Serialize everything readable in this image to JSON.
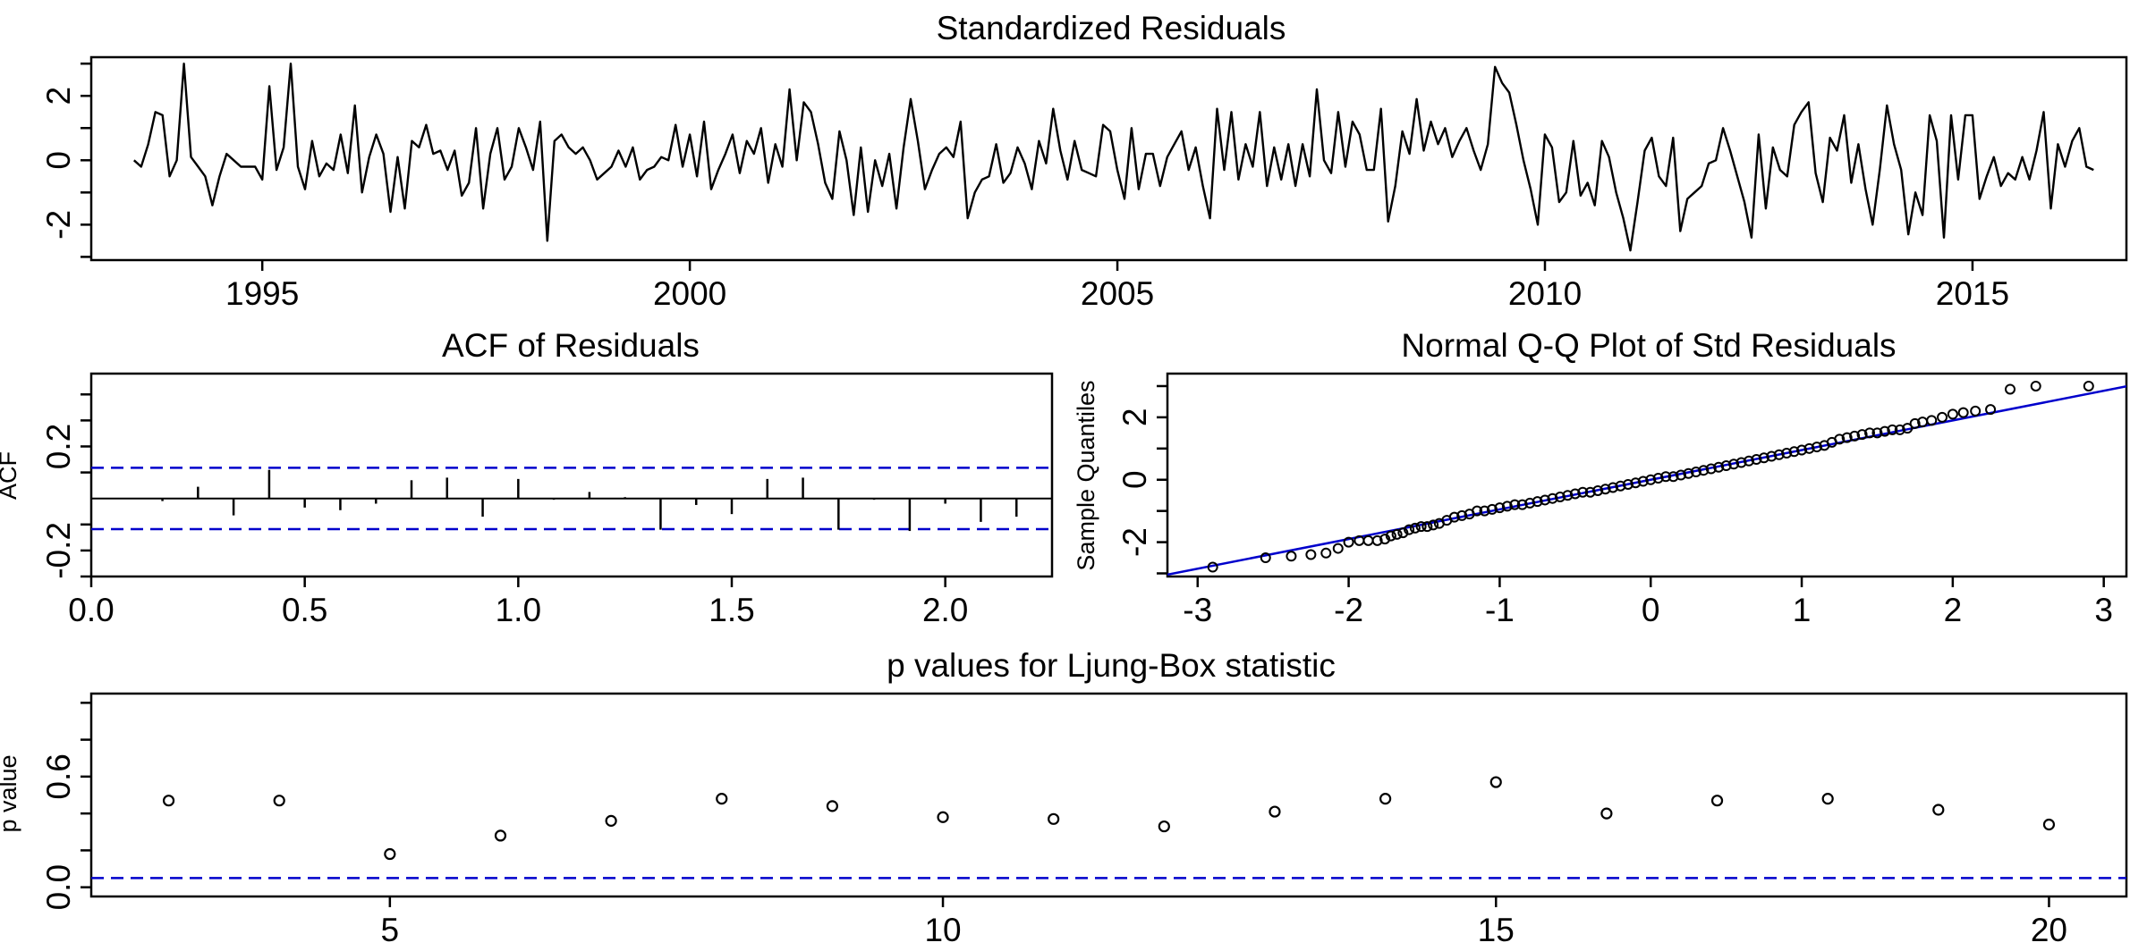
{
  "figure": {
    "colors": {
      "ink": "#000000",
      "reference": "#0000cc"
    }
  },
  "chart_data": [
    {
      "id": "resid",
      "type": "line",
      "title": "Standardized Residuals",
      "xlabel": "",
      "ylabel": "",
      "xlim": [
        1993.0,
        2016.8
      ],
      "ylim": [
        -3.1,
        3.2
      ],
      "x_ticks": [
        1995,
        2000,
        2005,
        2010,
        2015
      ],
      "x_tick_labels": [
        "1995",
        "2000",
        "2005",
        "2010",
        "2015"
      ],
      "y_ticks": [
        -2,
        0,
        2
      ],
      "y_tick_labels": [
        "-2",
        "0",
        "2"
      ],
      "y_minor_ticks": [
        -3,
        -1,
        1,
        3
      ],
      "x_start": 1993.5,
      "x_step": 0.08333,
      "values": [
        0.0,
        -0.2,
        0.5,
        1.5,
        1.4,
        -0.5,
        0.0,
        3.0,
        0.1,
        -0.2,
        -0.5,
        -1.4,
        -0.5,
        0.2,
        0.0,
        -0.2,
        -0.2,
        -0.2,
        -0.6,
        2.3,
        -0.3,
        0.4,
        3.0,
        -0.2,
        -0.9,
        0.6,
        -0.5,
        -0.1,
        -0.3,
        0.8,
        -0.4,
        1.7,
        -1.0,
        0.1,
        0.8,
        0.2,
        -1.6,
        0.1,
        -1.5,
        0.6,
        0.4,
        1.1,
        0.2,
        0.3,
        -0.3,
        0.3,
        -1.1,
        -0.7,
        1.0,
        -1.5,
        0.2,
        1.0,
        -0.6,
        -0.2,
        1.0,
        0.4,
        -0.3,
        1.2,
        -2.5,
        0.6,
        0.8,
        0.4,
        0.2,
        0.4,
        0.0,
        -0.6,
        -0.4,
        -0.2,
        0.3,
        -0.2,
        0.4,
        -0.6,
        -0.3,
        -0.2,
        0.1,
        0.0,
        1.1,
        -0.2,
        0.8,
        -0.5,
        1.2,
        -0.9,
        -0.3,
        0.2,
        0.8,
        -0.4,
        0.6,
        0.2,
        1.0,
        -0.7,
        0.5,
        -0.2,
        2.2,
        0.0,
        1.8,
        1.5,
        0.5,
        -0.7,
        -1.2,
        0.9,
        0.0,
        -1.7,
        0.4,
        -1.6,
        0.0,
        -0.8,
        0.2,
        -1.5,
        0.4,
        1.9,
        0.6,
        -0.9,
        -0.3,
        0.2,
        0.4,
        0.1,
        1.2,
        -1.8,
        -1.0,
        -0.6,
        -0.5,
        0.5,
        -0.7,
        -0.4,
        0.4,
        -0.1,
        -0.9,
        0.6,
        -0.1,
        1.6,
        0.3,
        -0.6,
        0.6,
        -0.3,
        -0.4,
        -0.5,
        1.1,
        0.9,
        -0.3,
        -1.2,
        1.0,
        -0.9,
        0.2,
        0.2,
        -0.8,
        0.1,
        0.5,
        0.9,
        -0.3,
        0.4,
        -0.8,
        -1.8,
        1.6,
        -0.3,
        1.5,
        -0.6,
        0.5,
        -0.2,
        1.5,
        -0.8,
        0.4,
        -0.6,
        0.5,
        -0.8,
        0.5,
        -0.5,
        2.2,
        0.0,
        -0.4,
        1.5,
        -0.2,
        1.2,
        0.8,
        -0.3,
        -0.3,
        1.6,
        -1.9,
        -0.8,
        0.9,
        0.2,
        1.9,
        0.3,
        1.2,
        0.5,
        1.0,
        0.1,
        0.6,
        1.0,
        0.3,
        -0.3,
        0.5,
        2.9,
        2.4,
        2.1,
        1.1,
        0.0,
        -0.9,
        -2.0,
        0.8,
        0.4,
        -1.3,
        -1.0,
        0.6,
        -1.1,
        -0.7,
        -1.4,
        0.6,
        0.1,
        -1.0,
        -1.8,
        -2.8,
        -1.3,
        0.3,
        0.7,
        -0.5,
        -0.8,
        0.7,
        -2.2,
        -1.2,
        -1.0,
        -0.8,
        -0.1,
        0.0,
        1.0,
        0.3,
        -0.5,
        -1.3,
        -2.4,
        0.8,
        -1.5,
        0.4,
        -0.3,
        -0.5,
        1.1,
        1.5,
        1.8,
        -0.4,
        -1.3,
        0.7,
        0.3,
        1.4,
        -0.7,
        0.5,
        -0.9,
        -2.0,
        -0.3,
        1.7,
        0.5,
        -0.3,
        -2.3,
        -1.0,
        -1.7,
        1.4,
        0.6,
        -2.4,
        1.4,
        -0.6,
        1.4,
        1.4,
        -1.2,
        -0.5,
        0.1,
        -0.8,
        -0.4,
        -0.6,
        0.1,
        -0.6,
        0.3,
        1.5,
        -1.5,
        0.5,
        -0.2,
        0.6,
        1.0,
        -0.2,
        -0.3
      ]
    },
    {
      "id": "acf",
      "type": "bar",
      "title": "ACF of Residuals",
      "xlabel": "",
      "ylabel": "ACF",
      "xlim": [
        0.0,
        2.25
      ],
      "ylim": [
        -0.3,
        0.48
      ],
      "x_ticks": [
        0.0,
        0.5,
        1.0,
        1.5,
        2.0
      ],
      "x_tick_labels": [
        "0.0",
        "0.5",
        "1.0",
        "1.5",
        "2.0"
      ],
      "y_ticks": [
        -0.2,
        0.2
      ],
      "y_tick_labels": [
        "-0.2",
        "0.2"
      ],
      "y_minor_ticks": [
        -0.3,
        -0.1,
        0.1,
        0.3,
        0.4
      ],
      "conf_bound": 0.118,
      "lags": [
        0.0833,
        0.1667,
        0.25,
        0.3333,
        0.4167,
        0.5,
        0.5833,
        0.6667,
        0.75,
        0.8333,
        0.9167,
        1.0,
        1.0833,
        1.1667,
        1.25,
        1.3333,
        1.4167,
        1.5,
        1.5833,
        1.6667,
        1.75,
        1.8333,
        1.9167,
        2.0,
        2.0833,
        2.1667
      ],
      "values": [
        0.0,
        -0.01,
        0.045,
        -0.065,
        0.11,
        -0.035,
        -0.045,
        -0.02,
        0.07,
        0.08,
        -0.07,
        0.075,
        -0.005,
        0.025,
        0.005,
        -0.12,
        -0.025,
        -0.06,
        0.075,
        0.08,
        -0.12,
        -0.005,
        -0.125,
        -0.02,
        -0.09,
        -0.07
      ]
    },
    {
      "id": "qq",
      "type": "scatter",
      "title": "Normal Q-Q Plot of Std Residuals",
      "xlabel": "",
      "ylabel": "Sample Quantiles",
      "xlim": [
        -3.2,
        3.15
      ],
      "ylim": [
        -3.1,
        3.4
      ],
      "x_ticks": [
        -3,
        -2,
        -1,
        0,
        1,
        2,
        3
      ],
      "x_tick_labels": [
        "-3",
        "-2",
        "-1",
        "0",
        "1",
        "2",
        "3"
      ],
      "y_ticks": [
        -2,
        0,
        2
      ],
      "y_tick_labels": [
        "-2",
        "0",
        "2"
      ],
      "y_minor_ticks": [
        -3,
        -1,
        1,
        3
      ],
      "reference_line": {
        "slope": 0.95,
        "intercept": 0.0
      },
      "points": [
        [
          -2.9,
          -2.8
        ],
        [
          -2.55,
          -2.5
        ],
        [
          -2.38,
          -2.45
        ],
        [
          -2.25,
          -2.4
        ],
        [
          -2.15,
          -2.35
        ],
        [
          -2.07,
          -2.2
        ],
        [
          -2.0,
          -2.0
        ],
        [
          -1.93,
          -1.95
        ],
        [
          -1.87,
          -1.95
        ],
        [
          -1.81,
          -1.95
        ],
        [
          -1.76,
          -1.9
        ],
        [
          -1.72,
          -1.8
        ],
        [
          -1.68,
          -1.75
        ],
        [
          -1.64,
          -1.7
        ],
        [
          -1.6,
          -1.6
        ],
        [
          -1.56,
          -1.55
        ],
        [
          -1.52,
          -1.5
        ],
        [
          -1.48,
          -1.5
        ],
        [
          -1.44,
          -1.45
        ],
        [
          -1.4,
          -1.4
        ],
        [
          -1.35,
          -1.3
        ],
        [
          -1.3,
          -1.2
        ],
        [
          -1.25,
          -1.15
        ],
        [
          -1.2,
          -1.1
        ],
        [
          -1.15,
          -1.0
        ],
        [
          -1.1,
          -1.0
        ],
        [
          -1.05,
          -0.95
        ],
        [
          -1.0,
          -0.9
        ],
        [
          -0.95,
          -0.85
        ],
        [
          -0.9,
          -0.8
        ],
        [
          -0.85,
          -0.8
        ],
        [
          -0.8,
          -0.75
        ],
        [
          -0.75,
          -0.7
        ],
        [
          -0.7,
          -0.65
        ],
        [
          -0.65,
          -0.6
        ],
        [
          -0.6,
          -0.55
        ],
        [
          -0.55,
          -0.5
        ],
        [
          -0.5,
          -0.45
        ],
        [
          -0.45,
          -0.4
        ],
        [
          -0.4,
          -0.4
        ],
        [
          -0.35,
          -0.35
        ],
        [
          -0.3,
          -0.3
        ],
        [
          -0.25,
          -0.25
        ],
        [
          -0.2,
          -0.2
        ],
        [
          -0.15,
          -0.15
        ],
        [
          -0.1,
          -0.1
        ],
        [
          -0.05,
          -0.05
        ],
        [
          0.0,
          0.0
        ],
        [
          0.05,
          0.05
        ],
        [
          0.1,
          0.1
        ],
        [
          0.15,
          0.1
        ],
        [
          0.2,
          0.15
        ],
        [
          0.25,
          0.2
        ],
        [
          0.3,
          0.25
        ],
        [
          0.35,
          0.3
        ],
        [
          0.4,
          0.35
        ],
        [
          0.45,
          0.4
        ],
        [
          0.5,
          0.45
        ],
        [
          0.55,
          0.5
        ],
        [
          0.6,
          0.55
        ],
        [
          0.65,
          0.6
        ],
        [
          0.7,
          0.65
        ],
        [
          0.75,
          0.7
        ],
        [
          0.8,
          0.75
        ],
        [
          0.85,
          0.8
        ],
        [
          0.9,
          0.85
        ],
        [
          0.95,
          0.9
        ],
        [
          1.0,
          0.95
        ],
        [
          1.05,
          1.0
        ],
        [
          1.1,
          1.05
        ],
        [
          1.15,
          1.1
        ],
        [
          1.2,
          1.2
        ],
        [
          1.25,
          1.3
        ],
        [
          1.3,
          1.35
        ],
        [
          1.35,
          1.4
        ],
        [
          1.4,
          1.45
        ],
        [
          1.45,
          1.5
        ],
        [
          1.5,
          1.5
        ],
        [
          1.55,
          1.55
        ],
        [
          1.6,
          1.6
        ],
        [
          1.65,
          1.6
        ],
        [
          1.7,
          1.65
        ],
        [
          1.75,
          1.8
        ],
        [
          1.8,
          1.85
        ],
        [
          1.86,
          1.9
        ],
        [
          1.93,
          2.0
        ],
        [
          2.0,
          2.1
        ],
        [
          2.07,
          2.15
        ],
        [
          2.15,
          2.2
        ],
        [
          2.25,
          2.25
        ],
        [
          2.38,
          2.9
        ],
        [
          2.55,
          3.0
        ],
        [
          2.9,
          3.0
        ]
      ]
    },
    {
      "id": "ljung",
      "type": "scatter",
      "title": "p values for Ljung-Box statistic",
      "xlabel": "",
      "ylabel": "p value",
      "xlim": [
        2.3,
        20.7
      ],
      "ylim": [
        -0.05,
        1.05
      ],
      "x_ticks": [
        5,
        10,
        15,
        20
      ],
      "x_tick_labels": [
        "5",
        "10",
        "15",
        "20"
      ],
      "y_ticks": [
        0.0,
        0.6
      ],
      "y_tick_labels": [
        "0.0",
        "0.6"
      ],
      "y_minor_ticks": [
        0.2,
        0.4,
        0.8,
        1.0
      ],
      "threshold": 0.05,
      "x": [
        3,
        4,
        5,
        6,
        7,
        8,
        9,
        10,
        11,
        12,
        13,
        14,
        15,
        16,
        17,
        18,
        19,
        20
      ],
      "values": [
        0.47,
        0.47,
        0.18,
        0.28,
        0.36,
        0.48,
        0.44,
        0.38,
        0.37,
        0.33,
        0.41,
        0.48,
        0.57,
        0.4,
        0.47,
        0.48,
        0.42,
        0.34
      ]
    }
  ]
}
